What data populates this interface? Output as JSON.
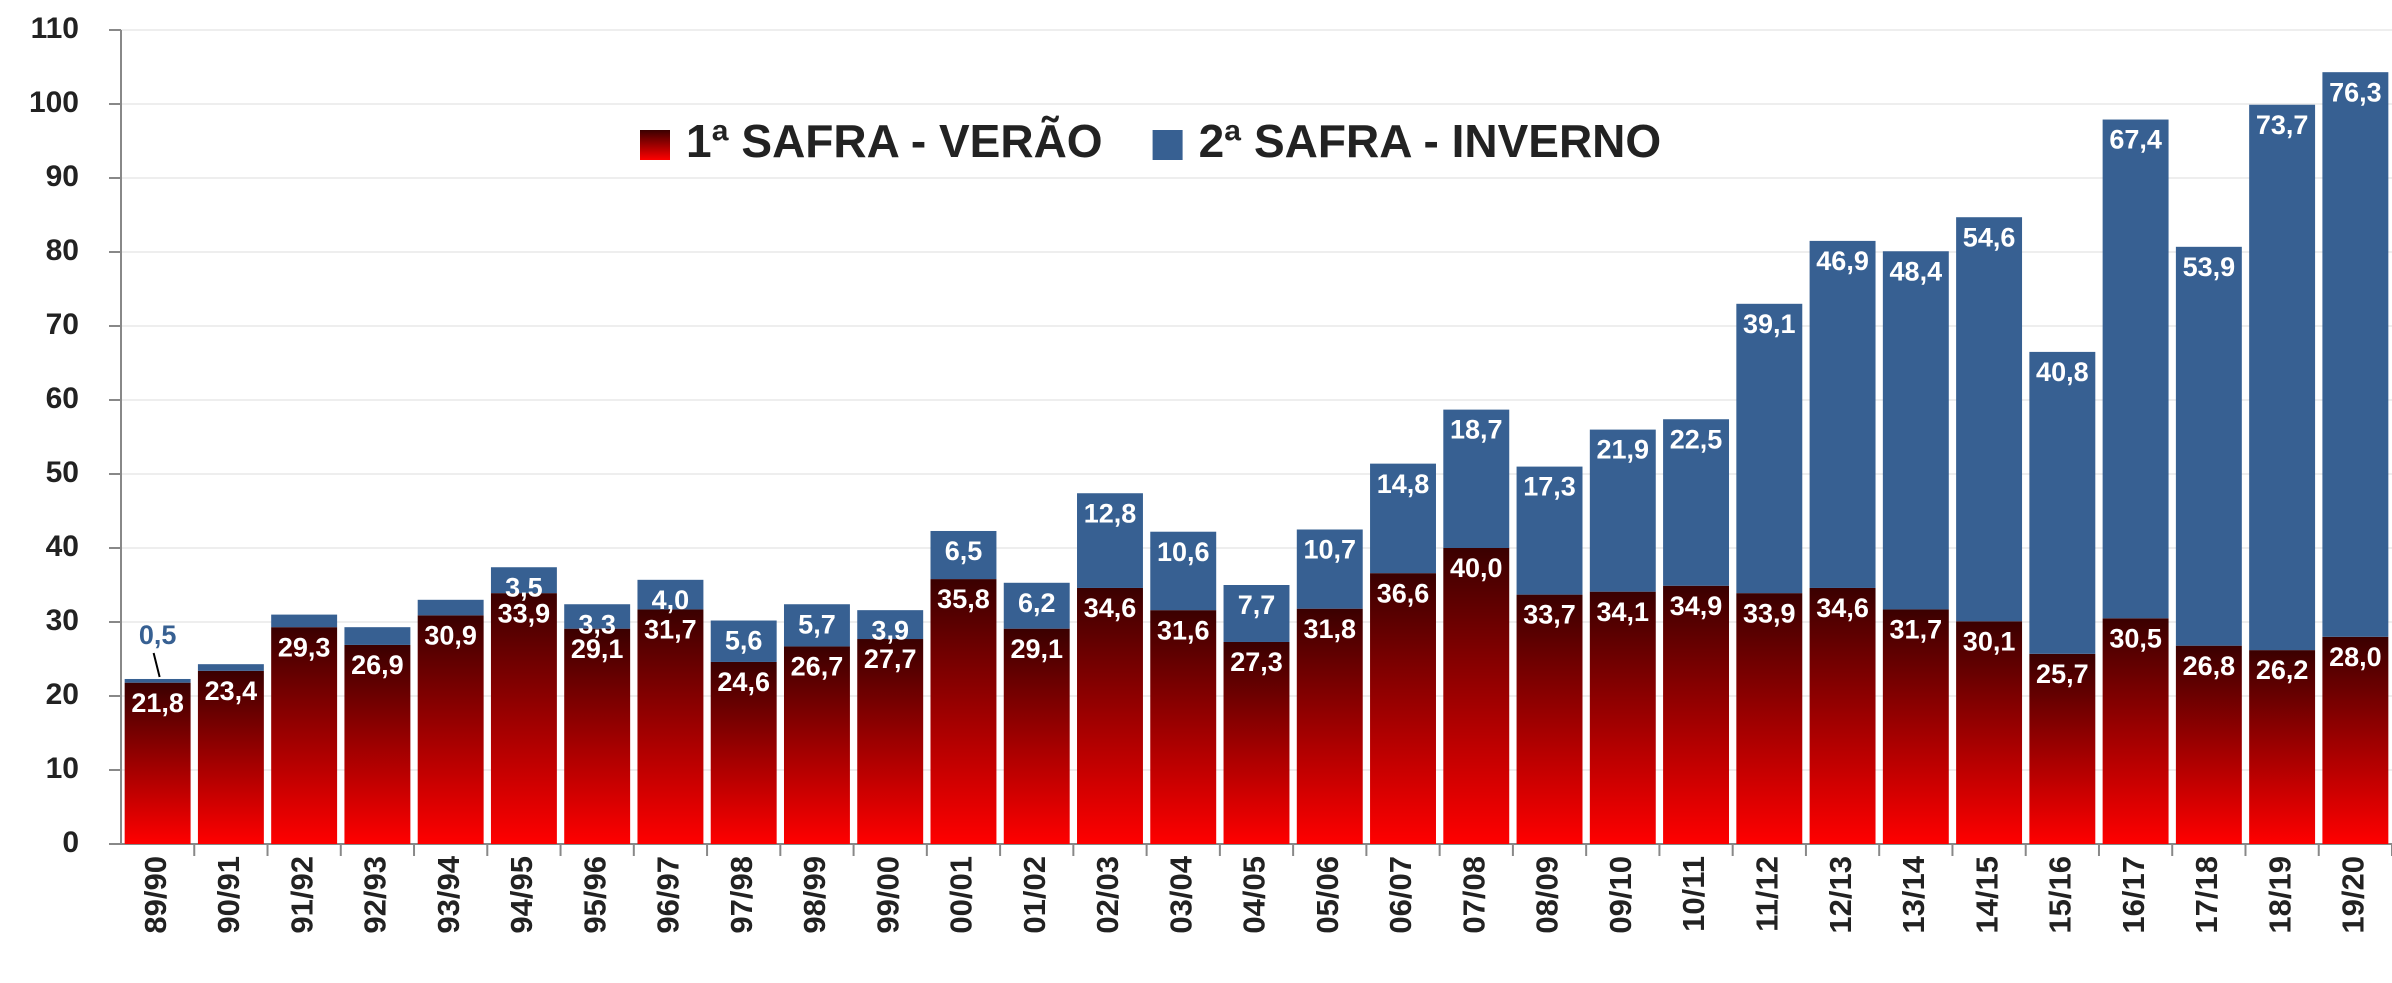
{
  "chart_data": {
    "type": "stacked-bar",
    "categories": [
      "89/90",
      "90/91",
      "91/92",
      "92/93",
      "93/94",
      "94/95",
      "95/96",
      "96/97",
      "97/98",
      "98/99",
      "99/00",
      "00/01",
      "01/02",
      "02/03",
      "03/04",
      "04/05",
      "05/06",
      "06/07",
      "07/08",
      "08/09",
      "09/10",
      "10/11",
      "11/12",
      "12/13",
      "13/14",
      "14/15",
      "15/16",
      "16/17",
      "17/18",
      "18/19",
      "19/20"
    ],
    "series": [
      {
        "name": "1ª SAFRA - VERÃO",
        "color": "#ff0000",
        "values": [
          21.8,
          23.4,
          29.3,
          26.9,
          30.9,
          33.9,
          29.1,
          31.7,
          24.6,
          26.7,
          27.7,
          35.8,
          29.1,
          34.6,
          31.6,
          27.3,
          31.8,
          36.6,
          40.0,
          33.7,
          34.1,
          34.9,
          33.9,
          34.6,
          31.7,
          30.1,
          25.7,
          30.5,
          26.8,
          26.2,
          28.0
        ],
        "value_labels": [
          "21,8",
          "23,4",
          "29,3",
          "26,9",
          "30,9",
          "33,9",
          "29,1",
          "31,7",
          "24,6",
          "26,7",
          "27,7",
          "35,8",
          "29,1",
          "34,6",
          "31,6",
          "27,3",
          "31,8",
          "36,6",
          "40,0",
          "33,7",
          "34,1",
          "34,9",
          "33,9",
          "34,6",
          "31,7",
          "30,1",
          "25,7",
          "30,5",
          "26,8",
          "26,2",
          "28,0"
        ]
      },
      {
        "name": "2ª SAFRA - INVERNO",
        "color": "#376092",
        "values": [
          0.5,
          0.9,
          1.7,
          2.4,
          2.1,
          3.5,
          3.3,
          4.0,
          5.6,
          5.7,
          3.9,
          6.5,
          6.2,
          12.8,
          10.6,
          7.7,
          10.7,
          14.8,
          18.7,
          17.3,
          21.9,
          22.5,
          39.1,
          46.9,
          48.4,
          54.6,
          40.8,
          67.4,
          53.9,
          73.7,
          76.3
        ],
        "value_labels": [
          "0,5",
          null,
          null,
          null,
          null,
          "3,5",
          "3,3",
          "4,0",
          "5,6",
          "5,7",
          "3,9",
          "6,5",
          "6,2",
          "12,8",
          "10,6",
          "7,7",
          "10,7",
          "14,8",
          "18,7",
          "17,3",
          "21,9",
          "22,5",
          "39,1",
          "46,9",
          "48,4",
          "54,6",
          "40,8",
          "67,4",
          "53,9",
          "73,7",
          "76,3"
        ]
      }
    ],
    "ylim": [
      0,
      110
    ],
    "yticks": [
      0,
      10,
      20,
      30,
      40,
      50,
      60,
      70,
      80,
      90,
      100,
      110
    ],
    "grid": true
  }
}
